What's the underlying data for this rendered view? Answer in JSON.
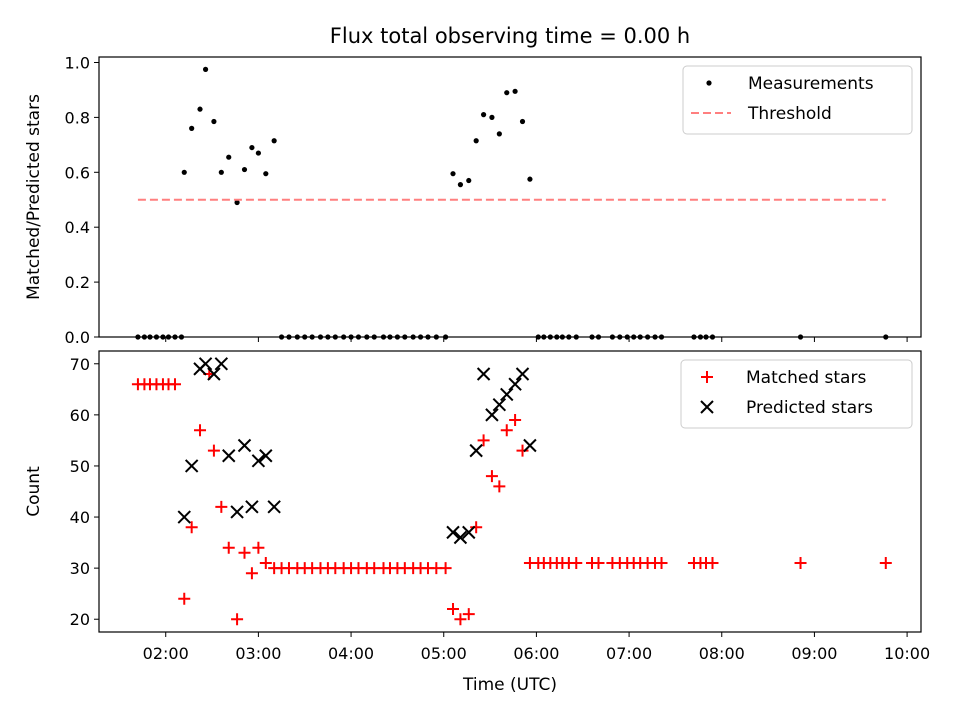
{
  "title": "Flux total observing time = 0.00 h",
  "chart_data": [
    {
      "type": "scatter",
      "ylabel": "Matched/Predicted stars",
      "ylim": [
        0,
        1.02
      ],
      "yticks": [
        0.0,
        0.2,
        0.4,
        0.6,
        0.8,
        1.0
      ],
      "ytick_labels": [
        "0.0",
        "0.2",
        "0.4",
        "0.6",
        "0.8",
        "1.0"
      ],
      "xlim": [
        1.28,
        10.15
      ],
      "grid": false,
      "legend": "top-right",
      "series": [
        {
          "name": "Measurements",
          "kind": "dot",
          "color": "#000000",
          "x": [
            1.7,
            1.77,
            1.83,
            1.9,
            1.97,
            2.03,
            2.1,
            2.17,
            2.2,
            2.28,
            2.37,
            2.43,
            2.52,
            2.6,
            2.68,
            2.77,
            2.85,
            2.93,
            3.0,
            3.08,
            3.17,
            3.25,
            3.33,
            3.42,
            3.5,
            3.58,
            3.67,
            3.75,
            3.83,
            3.92,
            4.0,
            4.08,
            4.17,
            4.25,
            4.35,
            4.42,
            4.5,
            4.58,
            4.67,
            4.75,
            4.83,
            4.92,
            5.02,
            5.1,
            5.18,
            5.27,
            5.35,
            5.43,
            5.52,
            5.6,
            5.68,
            5.77,
            5.85,
            5.93,
            6.02,
            6.08,
            6.15,
            6.22,
            6.28,
            6.35,
            6.43,
            6.6,
            6.67,
            6.82,
            6.9,
            6.98,
            7.05,
            7.12,
            7.2,
            7.28,
            7.35,
            7.7,
            7.77,
            7.83,
            7.9,
            8.85,
            9.77
          ],
          "y": [
            0,
            0,
            0,
            0,
            0,
            0,
            0,
            0,
            0.6,
            0.76,
            0.83,
            0.975,
            0.785,
            0.6,
            0.655,
            0.49,
            0.61,
            0.69,
            0.67,
            0.595,
            0.715,
            0,
            0,
            0,
            0,
            0,
            0,
            0,
            0,
            0,
            0,
            0,
            0,
            0,
            0,
            0,
            0,
            0,
            0,
            0,
            0,
            0,
            0,
            0.595,
            0.555,
            0.57,
            0.715,
            0.81,
            0.8,
            0.74,
            0.89,
            0.895,
            0.785,
            0.575,
            0,
            0,
            0,
            0,
            0,
            0,
            0,
            0,
            0,
            0,
            0,
            0,
            0,
            0,
            0,
            0,
            0,
            0,
            0,
            0,
            0,
            0,
            0
          ]
        },
        {
          "name": "Threshold",
          "kind": "dashed-line",
          "color": "#ff7f7f",
          "x": [
            1.7,
            9.77
          ],
          "y": [
            0.5,
            0.5
          ]
        }
      ]
    },
    {
      "type": "scatter",
      "xlabel": "Time (UTC)",
      "ylabel": "Count",
      "ylim": [
        17.5,
        72.5
      ],
      "yticks": [
        20,
        30,
        40,
        50,
        60,
        70
      ],
      "ytick_labels": [
        "20",
        "30",
        "40",
        "50",
        "60",
        "70"
      ],
      "xlim": [
        1.28,
        10.15
      ],
      "xticks": [
        2,
        3,
        4,
        5,
        6,
        7,
        8,
        9,
        10
      ],
      "xtick_labels": [
        "02:00",
        "03:00",
        "04:00",
        "05:00",
        "06:00",
        "07:00",
        "08:00",
        "09:00",
        "10:00"
      ],
      "grid": false,
      "legend": "top-right",
      "series": [
        {
          "name": "Matched stars",
          "kind": "plus",
          "color": "#ff0000",
          "x": [
            1.7,
            1.77,
            1.83,
            1.9,
            1.97,
            2.03,
            2.1,
            2.2,
            2.28,
            2.37,
            2.47,
            2.52,
            2.6,
            2.68,
            2.77,
            2.85,
            2.93,
            3.0,
            3.08,
            3.17,
            3.25,
            3.33,
            3.42,
            3.5,
            3.58,
            3.67,
            3.75,
            3.83,
            3.92,
            4.0,
            4.08,
            4.17,
            4.25,
            4.35,
            4.42,
            4.5,
            4.58,
            4.67,
            4.75,
            4.83,
            4.92,
            5.02,
            5.1,
            5.18,
            5.27,
            5.35,
            5.43,
            5.52,
            5.6,
            5.68,
            5.77,
            5.85,
            5.93,
            6.02,
            6.08,
            6.15,
            6.22,
            6.28,
            6.35,
            6.43,
            6.6,
            6.67,
            6.82,
            6.9,
            6.98,
            7.05,
            7.12,
            7.2,
            7.28,
            7.35,
            7.7,
            7.77,
            7.83,
            7.9,
            8.85,
            9.77
          ],
          "y": [
            66,
            66,
            66,
            66,
            66,
            66,
            66,
            24,
            38,
            57,
            68,
            53,
            42,
            34,
            20,
            33,
            29,
            34,
            31,
            30,
            30,
            30,
            30,
            30,
            30,
            30,
            30,
            30,
            30,
            30,
            30,
            30,
            30,
            30,
            30,
            30,
            30,
            30,
            30,
            30,
            30,
            30,
            22,
            20,
            21,
            38,
            55,
            48,
            46,
            57,
            59,
            53,
            31,
            31,
            31,
            31,
            31,
            31,
            31,
            31,
            31,
            31,
            31,
            31,
            31,
            31,
            31,
            31,
            31,
            31,
            31,
            31,
            31,
            31,
            31,
            31
          ]
        },
        {
          "name": "Predicted stars",
          "kind": "x",
          "color": "#000000",
          "x": [
            2.2,
            2.28,
            2.37,
            2.43,
            2.52,
            2.6,
            2.68,
            2.77,
            2.85,
            2.93,
            3.0,
            3.08,
            3.17,
            5.1,
            5.18,
            5.27,
            5.35,
            5.43,
            5.52,
            5.6,
            5.68,
            5.77,
            5.85,
            5.93
          ],
          "y": [
            40,
            50,
            69,
            70,
            68,
            70,
            52,
            41,
            54,
            42,
            51,
            52,
            42,
            37,
            36,
            37,
            53,
            68,
            60,
            62,
            64,
            66,
            68,
            54
          ]
        }
      ]
    }
  ]
}
